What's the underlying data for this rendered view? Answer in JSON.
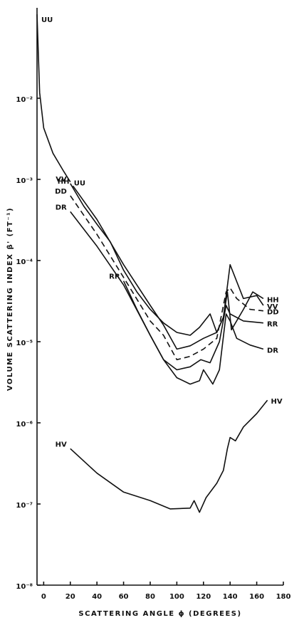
{
  "chart_data": {
    "type": "line",
    "xlabel": "SCATTERING ANGLE ϕ (DEGREES)",
    "ylabel": "VOLUME SCATTERING INDEX β' (FT⁻¹)",
    "xlim": [
      -5,
      180
    ],
    "ylim": [
      1e-08,
      0.13
    ],
    "log_y": true,
    "xticks": [
      0,
      20,
      40,
      60,
      80,
      100,
      120,
      140,
      160,
      180
    ],
    "yticks": [
      {
        "value": 1e-08,
        "label": "10⁻⁸"
      },
      {
        "value": 1e-07,
        "label": "10⁻⁷"
      },
      {
        "value": 1e-06,
        "label": "10⁻⁶"
      },
      {
        "value": 1e-05,
        "label": "10⁻⁵"
      },
      {
        "value": 0.0001,
        "label": "10⁻⁴"
      },
      {
        "value": 0.001,
        "label": "10⁻³"
      },
      {
        "value": 0.01,
        "label": "10⁻²"
      }
    ],
    "series": [
      {
        "name": "UU",
        "color": "#111111",
        "x": [
          -5,
          -3,
          0,
          7,
          15,
          20
        ],
        "values": [
          0.108,
          0.0117,
          0.0043,
          0.0021,
          0.00126,
          0.00093
        ]
      },
      {
        "name": "VV",
        "color": "#111111",
        "x": [
          20,
          30,
          40,
          50,
          60,
          70,
          80,
          90,
          100,
          110,
          117,
          125,
          130,
          135,
          140,
          150,
          160,
          165
        ],
        "values": [
          0.00089,
          0.00047,
          0.00028,
          0.00017,
          7.6e-05,
          4.1e-05,
          2.5e-05,
          1.7e-05,
          1.3e-05,
          1.2e-05,
          1.5e-05,
          2.2e-05,
          1.3e-05,
          2e-05,
          8.9e-05,
          3.4e-05,
          3.7e-05,
          2.8e-05
        ]
      },
      {
        "name": "HH",
        "color": "#111111",
        "x": [
          22,
          40,
          60,
          80,
          90,
          100,
          110,
          120,
          130,
          135,
          138,
          141,
          150,
          157,
          165
        ],
        "values": [
          0.00083,
          0.00032,
          8.9e-05,
          2.8e-05,
          1.6e-05,
          8.1e-06,
          8.9e-06,
          1.1e-05,
          1.3e-05,
          2e-05,
          4.1e-05,
          1.4e-05,
          2.5e-05,
          4.1e-05,
          3.4e-05
        ]
      },
      {
        "name": "DD",
        "color": "#111111",
        "style": "dashed",
        "x": [
          20,
          40,
          60,
          80,
          90,
          100,
          110,
          120,
          130,
          137,
          140,
          145,
          155,
          165
        ],
        "values": [
          0.00063,
          0.00021,
          6.2e-05,
          1.8e-05,
          1.2e-05,
          6e-06,
          6.6e-06,
          8.1e-06,
          1.1e-05,
          4.1e-05,
          4.6e-05,
          3.4e-05,
          2.5e-05,
          2.4e-05
        ]
      },
      {
        "name": "RR",
        "color": "#111111",
        "x": [
          60,
          70,
          80,
          90,
          100,
          110,
          118,
          125,
          132,
          137,
          140,
          150,
          165
        ],
        "values": [
          5.6e-05,
          2.5e-05,
          1.2e-05,
          6e-06,
          4.5e-06,
          4.9e-06,
          6e-06,
          5.5e-06,
          1e-05,
          2.8e-05,
          2.2e-05,
          1.8e-05,
          1.7e-05
        ]
      },
      {
        "name": "DR",
        "color": "#111111",
        "x": [
          20,
          40,
          60,
          80,
          90,
          100,
          110,
          117,
          120,
          127,
          132,
          137,
          140,
          145,
          155,
          165
        ],
        "values": [
          0.0004,
          0.00015,
          5e-05,
          1.2e-05,
          6e-06,
          3.6e-06,
          3e-06,
          3.3e-06,
          4.5e-06,
          3e-06,
          4.5e-06,
          2.2e-05,
          1.8e-05,
          1.1e-05,
          9.1e-06,
          8.1e-06
        ]
      },
      {
        "name": "HV",
        "color": "#111111",
        "x": [
          20,
          40,
          60,
          80,
          95,
          110,
          113,
          117,
          122,
          130,
          135,
          138,
          140,
          144,
          150,
          160,
          168
        ],
        "values": [
          4.8e-07,
          2.4e-07,
          1.4e-07,
          1.1e-07,
          8.7e-08,
          8.9e-08,
          1.1e-07,
          7.9e-08,
          1.2e-07,
          1.8e-07,
          2.6e-07,
          4.8e-07,
          6.6e-07,
          6e-07,
          8.9e-07,
          1.3e-06,
          1.9e-06
        ]
      }
    ]
  }
}
